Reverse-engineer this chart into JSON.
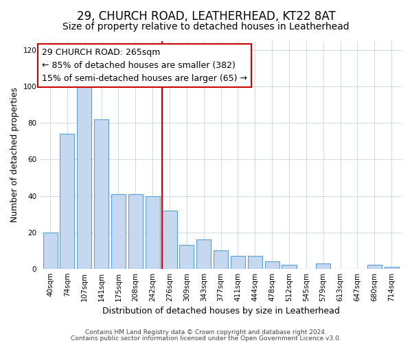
{
  "title": "29, CHURCH ROAD, LEATHERHEAD, KT22 8AT",
  "subtitle": "Size of property relative to detached houses in Leatherhead",
  "xlabel": "Distribution of detached houses by size in Leatherhead",
  "ylabel": "Number of detached properties",
  "bar_labels": [
    "40sqm",
    "74sqm",
    "107sqm",
    "141sqm",
    "175sqm",
    "208sqm",
    "242sqm",
    "276sqm",
    "309sqm",
    "343sqm",
    "377sqm",
    "411sqm",
    "444sqm",
    "478sqm",
    "512sqm",
    "545sqm",
    "579sqm",
    "613sqm",
    "647sqm",
    "680sqm",
    "714sqm"
  ],
  "bar_values": [
    20,
    74,
    100,
    82,
    41,
    41,
    40,
    32,
    13,
    16,
    10,
    7,
    7,
    4,
    2,
    0,
    3,
    0,
    0,
    2,
    1
  ],
  "bar_color": "#c5d8f0",
  "bar_edge_color": "#5a9fd4",
  "reference_line_index": 7,
  "reference_line_color": "#cc0000",
  "annotation_line1": "29 CHURCH ROAD: 265sqm",
  "annotation_line2": "← 85% of detached houses are smaller (382)",
  "annotation_line3": "15% of semi-detached houses are larger (65) →",
  "annotation_box_color": "#ffffff",
  "annotation_box_edge": "#cc0000",
  "ylim": [
    0,
    125
  ],
  "yticks": [
    0,
    20,
    40,
    60,
    80,
    100,
    120
  ],
  "footer1": "Contains HM Land Registry data © Crown copyright and database right 2024.",
  "footer2": "Contains public sector information licensed under the Open Government Licence v3.0.",
  "bg_color": "#ffffff",
  "grid_color": "#d0dce8",
  "title_fontsize": 12,
  "subtitle_fontsize": 10,
  "axis_label_fontsize": 9,
  "tick_fontsize": 7.5,
  "annotation_fontsize": 9,
  "footer_fontsize": 6.5
}
